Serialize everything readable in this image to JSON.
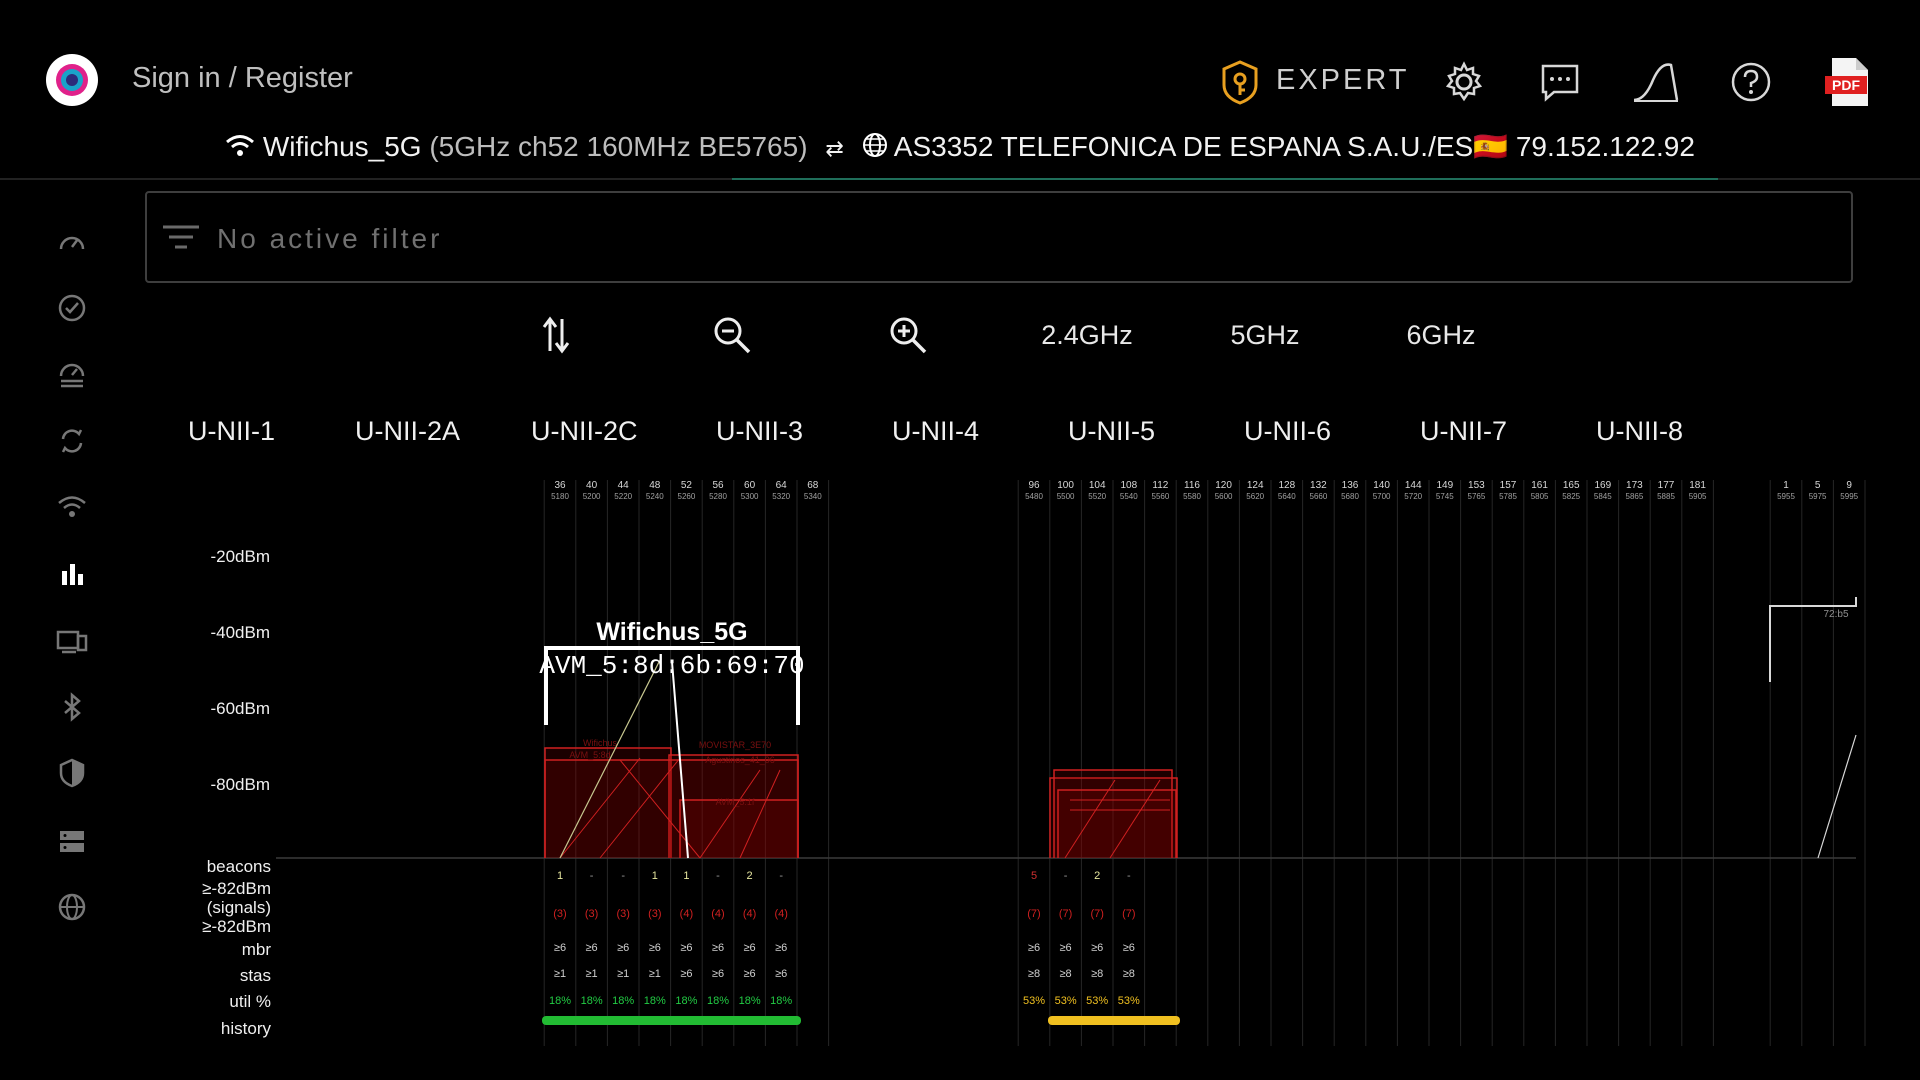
{
  "header": {
    "signin_label": "Sign in / Register",
    "expert_label": "EXPERT",
    "icons": [
      "expert-badge-icon",
      "gear-icon",
      "chat-icon",
      "signal-curve-icon",
      "help-icon",
      "pdf-icon"
    ],
    "pdf_label": "PDF"
  },
  "network": {
    "ssid": "Wifichus_5G",
    "details": "(5GHz ch52 160MHz BE5765)",
    "isp": "AS3352 TELEFONICA DE ESPANA S.A.U./ES",
    "flag": "🇪🇸",
    "ip": "79.152.122.92"
  },
  "sidebar": {
    "items": [
      "speedometer-icon",
      "check-circle-icon",
      "speed-history-icon",
      "sync-icon",
      "wifi-icon",
      "bar-chart-icon",
      "devices-icon",
      "bluetooth-icon",
      "shield-icon",
      "server-icon",
      "globe-icon"
    ],
    "active_index": 5
  },
  "filter": {
    "placeholder": "No active filter"
  },
  "toolbar": {
    "icons": [
      "sort-icon",
      "zoom-out-icon",
      "zoom-in-icon"
    ],
    "bands": [
      "2.4GHz",
      "5GHz",
      "6GHz"
    ]
  },
  "band_groups": [
    "U-NII-1",
    "U-NII-2A",
    "U-NII-2C",
    "U-NII-3",
    "U-NII-4",
    "U-NII-5",
    "U-NII-6",
    "U-NII-7",
    "U-NII-8"
  ],
  "y_axis": {
    "labels": [
      "-20dBm",
      "-40dBm",
      "-60dBm",
      "-80dBm"
    ]
  },
  "row_labels": {
    "beacons": "beacons",
    "signals": "≥-82dBm\n(signals)",
    "ge82": "≥-82dBm",
    "mbr": "mbr",
    "stas": "stas",
    "util": "util %",
    "history": "history"
  },
  "chart_data": {
    "type": "spectrum",
    "channels_a": [
      {
        "ch": "36",
        "f": "5180"
      },
      {
        "ch": "40",
        "f": "5200"
      },
      {
        "ch": "44",
        "f": "5220"
      },
      {
        "ch": "48",
        "f": "5240"
      },
      {
        "ch": "52",
        "f": "5260"
      },
      {
        "ch": "56",
        "f": "5280"
      },
      {
        "ch": "60",
        "f": "5300"
      },
      {
        "ch": "64",
        "f": "5320"
      },
      {
        "ch": "68",
        "f": "5340"
      }
    ],
    "channels_b": [
      {
        "ch": "96",
        "f": "5480"
      },
      {
        "ch": "100",
        "f": "5500"
      },
      {
        "ch": "104",
        "f": "5520"
      },
      {
        "ch": "108",
        "f": "5540"
      },
      {
        "ch": "112",
        "f": "5560"
      },
      {
        "ch": "116",
        "f": "5580"
      },
      {
        "ch": "120",
        "f": "5600"
      },
      {
        "ch": "124",
        "f": "5620"
      },
      {
        "ch": "128",
        "f": "5640"
      },
      {
        "ch": "132",
        "f": "5660"
      },
      {
        "ch": "136",
        "f": "5680"
      },
      {
        "ch": "140",
        "f": "5700"
      },
      {
        "ch": "144",
        "f": "5720"
      },
      {
        "ch": "149",
        "f": "5745"
      },
      {
        "ch": "153",
        "f": "5765"
      },
      {
        "ch": "157",
        "f": "5785"
      },
      {
        "ch": "161",
        "f": "5805"
      },
      {
        "ch": "165",
        "f": "5825"
      },
      {
        "ch": "169",
        "f": "5845"
      },
      {
        "ch": "173",
        "f": "5865"
      },
      {
        "ch": "177",
        "f": "5885"
      },
      {
        "ch": "181",
        "f": "5905"
      }
    ],
    "channels_c": [
      {
        "ch": "1",
        "f": "5955"
      },
      {
        "ch": "5",
        "f": "5975"
      },
      {
        "ch": "9",
        "f": "5995"
      }
    ],
    "highlight": {
      "ssid": "Wifichus_5G",
      "bssid": "AVM_5:8d:6b:69:70"
    },
    "stats_a": {
      "beacons": [
        "1",
        "-",
        "-",
        "1",
        "1",
        "-",
        "2",
        "-"
      ],
      "signals": [
        "(3)",
        "(3)",
        "(3)",
        "(3)",
        "(4)",
        "(4)",
        "(4)",
        "(4)"
      ],
      "mbr": [
        "≥6",
        "≥6",
        "≥6",
        "≥6",
        "≥6",
        "≥6",
        "≥6",
        "≥6"
      ],
      "stas": [
        "≥1",
        "≥1",
        "≥1",
        "≥1",
        "≥6",
        "≥6",
        "≥6",
        "≥6"
      ],
      "util": [
        "18%",
        "18%",
        "18%",
        "18%",
        "18%",
        "18%",
        "18%",
        "18%"
      ]
    },
    "stats_b": {
      "beacons": [
        "5",
        "-",
        "2",
        "-"
      ],
      "signals": [
        "(7)",
        "(7)",
        "(7)",
        "(7)"
      ],
      "mbr": [
        "≥6",
        "≥6",
        "≥6",
        "≥6"
      ],
      "stas": [
        "≥8",
        "≥8",
        "≥8",
        "≥8"
      ],
      "util": [
        "53%",
        "53%",
        "53%",
        "53%"
      ]
    },
    "right_partial_label": "72:b5",
    "colors": {
      "util_a": "#22cc44",
      "util_b": "#f0c020",
      "signals": "#d02020",
      "beacons_a": "#e8e8a0",
      "beacon_red": "#d03030",
      "history_a": "#22bb33",
      "history_b": "#f0c020"
    }
  }
}
